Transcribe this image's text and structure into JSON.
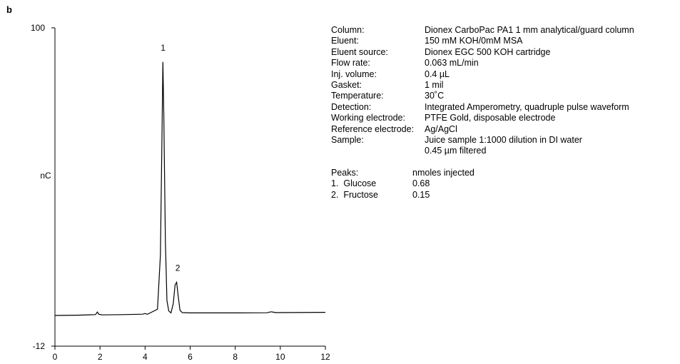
{
  "panel_label": "b",
  "chart_data": {
    "type": "line",
    "title": "",
    "xlabel": "",
    "ylabel": "nC",
    "xlim": [
      0,
      12
    ],
    "ylim": [
      -12,
      100
    ],
    "x_ticks": [
      0,
      2,
      4,
      6,
      8,
      10,
      12
    ],
    "y_tick_labels": [
      "100",
      "-12"
    ],
    "grid": false,
    "legend": "none",
    "line_color": "#000000",
    "series": [
      {
        "x": [
          0,
          1.0,
          1.8,
          1.88,
          1.95,
          2.1,
          3.0,
          3.9,
          4.0,
          4.1,
          4.55,
          4.68,
          4.75,
          4.79,
          4.83,
          4.9,
          4.97,
          5.05,
          5.15,
          5.25,
          5.33,
          5.4,
          5.47,
          5.55,
          5.65,
          6.0,
          8.0,
          9.4,
          9.6,
          9.8,
          12.0
        ],
        "y": [
          -1.2,
          -1.1,
          -0.9,
          0.0,
          -0.8,
          -1.0,
          -0.9,
          -0.75,
          -0.5,
          -0.8,
          1.0,
          20.0,
          62.0,
          88.0,
          70.0,
          25.0,
          4.0,
          0.4,
          -0.3,
          3.0,
          9.5,
          10.5,
          5.5,
          0.6,
          -0.2,
          -0.3,
          -0.3,
          -0.25,
          0.1,
          -0.2,
          -0.1
        ]
      }
    ],
    "annotations": [
      {
        "text": "1",
        "x": 4.8,
        "y": 92
      },
      {
        "text": "2",
        "x": 5.45,
        "y": 14.5
      }
    ]
  },
  "conditions": [
    {
      "label": "Column:",
      "value": "Dionex CarboPac PA1 1 mm analytical/guard column"
    },
    {
      "label": "Eluent:",
      "value": "150 mM KOH/0mM MSA"
    },
    {
      "label": "Eluent source:",
      "value": "Dionex EGC 500 KOH cartridge"
    },
    {
      "label": "Flow rate:",
      "value": "0.063 mL/min"
    },
    {
      "label": "Inj. volume:",
      "value": "0.4 µL"
    },
    {
      "label": "Gasket:",
      "value": "1 mil"
    },
    {
      "label": "Temperature:",
      "value": "30˚C"
    },
    {
      "label": "Detection:",
      "value": "Integrated Amperometry, quadruple pulse waveform"
    },
    {
      "label": "Working electrode:",
      "value": "PTFE Gold, disposable electrode"
    },
    {
      "label": "Reference electrode:",
      "value": "Ag/AgCl"
    },
    {
      "label": "Sample:",
      "value": "Juice sample 1:1000 dilution in DI water"
    },
    {
      "label": "",
      "value": "0.45 µm filtered"
    }
  ],
  "peaks": {
    "label": "Peaks:",
    "unit": "nmoles injected",
    "items": [
      {
        "num": "1.",
        "name": "Glucose",
        "value": "0.68"
      },
      {
        "num": "2.",
        "name": "Fructose",
        "value": "0.15"
      }
    ]
  }
}
